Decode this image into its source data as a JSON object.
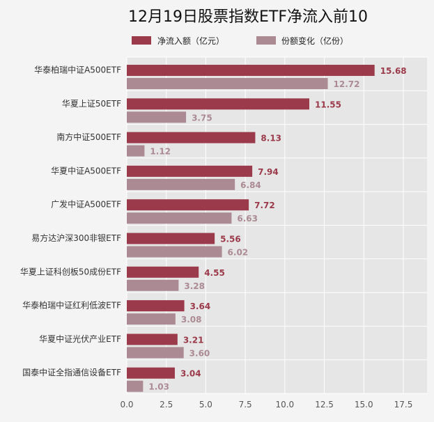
{
  "chart_data": {
    "type": "bar",
    "orientation": "horizontal",
    "title": "12月19日股票指数ETF净流入前10",
    "categories": [
      "华泰柏瑞中证A500ETF",
      "华夏上证50ETF",
      "南方中证500ETF",
      "华夏中证A500ETF",
      "广发中证A500ETF",
      "易方达沪深300非银ETF",
      "华夏上证科创板50成份ETF",
      "华泰柏瑞中证红利低波ETF",
      "华夏中证光伏产业ETF",
      "国泰中证全指通信设备ETF"
    ],
    "series": [
      {
        "name": "净流入额（亿元）",
        "color": "#9b3a4a",
        "values": [
          15.68,
          11.55,
          8.13,
          7.94,
          7.72,
          5.56,
          4.55,
          3.64,
          3.21,
          3.04
        ],
        "labels": [
          "15.68",
          "11.55",
          "8.13",
          "7.94",
          "7.72",
          "5.56",
          "4.55",
          "3.64",
          "3.21",
          "3.04"
        ]
      },
      {
        "name": "份额变化（亿份）",
        "color": "#ab8a93",
        "values": [
          12.72,
          3.75,
          1.12,
          6.84,
          6.63,
          6.02,
          3.28,
          3.08,
          3.6,
          1.03
        ],
        "labels": [
          "12.72",
          "3.75",
          "1.12",
          "6.84",
          "6.63",
          "6.02",
          "3.28",
          "3.08",
          "3.60",
          "1.03"
        ]
      }
    ],
    "xlim": [
      0,
      19
    ],
    "xticks": [
      0.0,
      2.5,
      5.0,
      7.5,
      10.0,
      12.5,
      15.0,
      17.5
    ],
    "xtick_labels": [
      "0.0",
      "2.5",
      "5.0",
      "7.5",
      "10.0",
      "12.5",
      "15.0",
      "17.5"
    ],
    "grid": true,
    "legend": "top-center",
    "plot_background": "#e6e6e6"
  }
}
